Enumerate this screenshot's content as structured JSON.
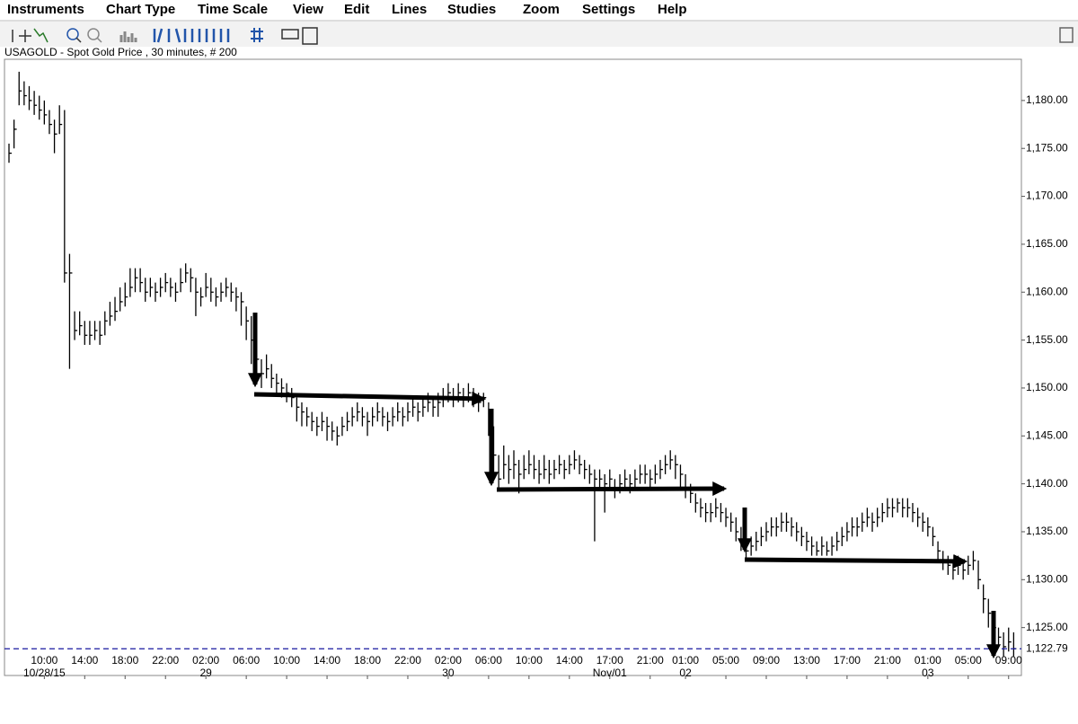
{
  "menu": [
    "Instruments",
    "Chart Type",
    "Time Scale",
    "View",
    "Edit",
    "Lines",
    "Studies",
    "Zoom",
    "Settings",
    "Help"
  ],
  "chart_data": {
    "type": "hlc",
    "title": "USAGOLD - Spot Gold Price , 30 minutes, # 200",
    "color": "#000000",
    "high": [
      1175.5,
      1178,
      1183,
      1182,
      1181.5,
      1181,
      1180.5,
      1180,
      1179,
      1178,
      1179.5,
      1179,
      1164,
      1158,
      1158,
      1157,
      1157,
      1157,
      1157,
      1158,
      1159,
      1159.5,
      1160.5,
      1161,
      1162.5,
      1162.5,
      1162.5,
      1161.5,
      1161.5,
      1161,
      1161.5,
      1162,
      1161.5,
      1161,
      1162.5,
      1163,
      1162.5,
      1161.5,
      1160.5,
      1162,
      1161.5,
      1160.5,
      1161,
      1161.5,
      1161,
      1160.5,
      1160,
      1158.5,
      1157.5,
      1155,
      1153,
      1153.5,
      1152.5,
      1151.5,
      1151,
      1150.5,
      1150,
      1149,
      1148.5,
      1148,
      1147.5,
      1147,
      1147.5,
      1147,
      1146.5,
      1146,
      1147,
      1147.5,
      1148,
      1148.5,
      1148,
      1147.5,
      1148,
      1148.5,
      1148,
      1147.5,
      1148,
      1148.5,
      1148,
      1148.5,
      1149,
      1148.5,
      1149,
      1149.5,
      1149,
      1149.5,
      1150,
      1150.5,
      1150,
      1150.5,
      1150,
      1150.5,
      1150,
      1149.5,
      1149.5,
      1148.5,
      1146,
      1143,
      1144,
      1143,
      1143.5,
      1142.5,
      1143,
      1143.5,
      1143,
      1142.5,
      1143,
      1142.5,
      1142.5,
      1143,
      1142.5,
      1143,
      1143.5,
      1143,
      1142.5,
      1142,
      1141.5,
      1141.5,
      1141,
      1141.5,
      1140.5,
      1141,
      1141.5,
      1141,
      1141.5,
      1142,
      1142,
      1141.5,
      1142,
      1142.5,
      1143,
      1143.5,
      1143,
      1142,
      1141,
      1140,
      1139,
      1138.5,
      1138,
      1138,
      1138.5,
      1138,
      1137.5,
      1137,
      1136.5,
      1135.5,
      1134.5,
      1134.5,
      1135,
      1135.5,
      1136,
      1136.5,
      1136.5,
      1137,
      1137,
      1136.5,
      1136,
      1135.5,
      1135,
      1134.5,
      1134,
      1134.5,
      1134,
      1134.5,
      1135,
      1135.5,
      1136,
      1136.5,
      1136.5,
      1137,
      1137.5,
      1137,
      1137.5,
      1138,
      1138.5,
      1138.5,
      1138.5,
      1138.5,
      1138.5,
      1138,
      1137.5,
      1137,
      1136.5,
      1135.5,
      1134,
      1133,
      1132.5,
      1132,
      1132.5,
      1132,
      1132.5,
      1133,
      1132,
      1129.5,
      1128,
      1126.5,
      1125,
      1124.5,
      1125,
      1124.5
    ],
    "low": [
      1173.5,
      1175,
      1179.5,
      1179.5,
      1179,
      1178.5,
      1178,
      1177.5,
      1176.5,
      1174.5,
      1176.5,
      1161,
      1152,
      1155,
      1155.5,
      1154.5,
      1154.5,
      1155,
      1154.5,
      1155.5,
      1156.5,
      1157,
      1158,
      1158.5,
      1159.5,
      1160,
      1160,
      1159,
      1159.5,
      1159,
      1159.5,
      1160,
      1159.5,
      1159,
      1160,
      1161,
      1160,
      1157.5,
      1158.5,
      1159.5,
      1159,
      1158.5,
      1159,
      1159.5,
      1159,
      1158,
      1156.5,
      1155,
      1152.5,
      1150.5,
      1150,
      1151,
      1150,
      1149.5,
      1149,
      1148.5,
      1148,
      1146.5,
      1146,
      1146,
      1145.5,
      1145,
      1145.5,
      1144.5,
      1144.5,
      1144,
      1145,
      1145.5,
      1146,
      1146.5,
      1146,
      1145,
      1146,
      1146.5,
      1146,
      1145.5,
      1146,
      1146.5,
      1146,
      1146.5,
      1147,
      1146.5,
      1147,
      1147.5,
      1147,
      1147,
      1148,
      1148.5,
      1148,
      1148.5,
      1148,
      1148.5,
      1148,
      1147.5,
      1148,
      1145,
      1141,
      1139.5,
      1140.5,
      1140,
      1140.5,
      1139,
      1140.5,
      1141,
      1140.5,
      1140,
      1140.5,
      1140,
      1140.5,
      1141,
      1140.5,
      1141,
      1141.5,
      1141,
      1140.5,
      1140,
      1134,
      1139.5,
      1137,
      1139.5,
      1138.5,
      1139,
      1139.5,
      1139,
      1139.5,
      1140,
      1140,
      1139.5,
      1140,
      1140.5,
      1141,
      1141.5,
      1140.5,
      1139.5,
      1138.5,
      1138,
      1137,
      1136.5,
      1136,
      1136,
      1136.5,
      1136,
      1135.5,
      1135,
      1134,
      1133,
      1132,
      1132.5,
      1133,
      1133.5,
      1134,
      1134.5,
      1134.5,
      1135,
      1135,
      1134.5,
      1134,
      1133.5,
      1133,
      1132.5,
      1132.5,
      1132.5,
      1132.5,
      1132.5,
      1133,
      1133.5,
      1134,
      1134.5,
      1134.5,
      1135,
      1135.5,
      1135,
      1135.5,
      1136,
      1136.5,
      1136.5,
      1137,
      1136.5,
      1136.5,
      1136,
      1135.5,
      1135,
      1134.5,
      1133.5,
      1132,
      1131,
      1130.5,
      1130,
      1130.5,
      1130,
      1130.5,
      1131,
      1129,
      1126.5,
      1125,
      1124,
      1123,
      1122,
      1122.5,
      1122
    ],
    "close": [
      1174.5,
      1177,
      1181,
      1180.5,
      1180,
      1179.5,
      1179,
      1178.5,
      1177.5,
      1176.5,
      1177.5,
      1162,
      1162,
      1156,
      1156.5,
      1155.5,
      1155.5,
      1156,
      1155.5,
      1157,
      1157.5,
      1158,
      1159,
      1159.5,
      1160.5,
      1161.5,
      1161,
      1160,
      1160.5,
      1160,
      1160.5,
      1161,
      1160.5,
      1160,
      1161,
      1162,
      1161.5,
      1160,
      1159.5,
      1160.5,
      1160,
      1159.5,
      1160,
      1160.5,
      1160,
      1159.5,
      1159,
      1157,
      1155,
      1153,
      1151.5,
      1152,
      1151,
      1150.5,
      1150,
      1149.5,
      1149,
      1148,
      1147.5,
      1147,
      1146.5,
      1146,
      1146.5,
      1146,
      1145.5,
      1145,
      1146,
      1146.5,
      1147,
      1147.5,
      1147,
      1146.5,
      1147,
      1147.5,
      1147,
      1146.5,
      1147,
      1147.5,
      1147,
      1147.5,
      1148,
      1147.5,
      1148,
      1148.5,
      1148,
      1148.5,
      1149,
      1149.5,
      1149,
      1149.5,
      1149,
      1149.5,
      1149,
      1148.5,
      1149,
      1146,
      1143,
      1140.5,
      1142,
      1141.5,
      1142,
      1141,
      1141.5,
      1142,
      1141.5,
      1141,
      1141.5,
      1141,
      1141.5,
      1142,
      1141.5,
      1142,
      1142.5,
      1142,
      1141.5,
      1141,
      1140.5,
      1140.5,
      1140,
      1140.5,
      1139.5,
      1140,
      1140.5,
      1140,
      1140.5,
      1141,
      1141,
      1140.5,
      1141,
      1141.5,
      1142,
      1142.5,
      1142,
      1141,
      1139.5,
      1139,
      1138,
      1137.5,
      1137,
      1137,
      1137.5,
      1137,
      1136.5,
      1136,
      1135,
      1134,
      1133,
      1133.5,
      1134,
      1134.5,
      1135,
      1135.5,
      1135.5,
      1136,
      1136,
      1135.5,
      1135,
      1134.5,
      1134,
      1133.5,
      1133,
      1133.5,
      1133,
      1133.5,
      1134,
      1134.5,
      1135,
      1135.5,
      1135.5,
      1136,
      1136.5,
      1136,
      1136.5,
      1137,
      1137.5,
      1137.5,
      1138,
      1137.5,
      1137.5,
      1137,
      1136.5,
      1136,
      1135.5,
      1134.5,
      1133,
      1132,
      1131.5,
      1131,
      1131.5,
      1131,
      1131.5,
      1132,
      1130,
      1128,
      1126.5,
      1125,
      1124,
      1123,
      1123.5,
      1122.8
    ],
    "xlim": [
      0,
      200
    ],
    "xticks": [
      {
        "value": 7,
        "label": "10:00"
      },
      {
        "value": 15,
        "label": "14:00"
      },
      {
        "value": 23,
        "label": "18:00"
      },
      {
        "value": 31,
        "label": "22:00"
      },
      {
        "value": 39,
        "label": "02:00"
      },
      {
        "value": 47,
        "label": "06:00"
      },
      {
        "value": 55,
        "label": "10:00"
      },
      {
        "value": 63,
        "label": "14:00"
      },
      {
        "value": 71,
        "label": "18:00"
      },
      {
        "value": 79,
        "label": "22:00"
      },
      {
        "value": 87,
        "label": "02:00"
      },
      {
        "value": 95,
        "label": "06:00"
      },
      {
        "value": 103,
        "label": "10:00"
      },
      {
        "value": 111,
        "label": "14:00"
      },
      {
        "value": 119,
        "label": "17:00"
      },
      {
        "value": 127,
        "label": "21:00"
      },
      {
        "value": 134,
        "label": "01:00"
      },
      {
        "value": 142,
        "label": "05:00"
      },
      {
        "value": 150,
        "label": "09:00"
      },
      {
        "value": 158,
        "label": "13:00"
      },
      {
        "value": 166,
        "label": "17:00"
      },
      {
        "value": 174,
        "label": "21:00"
      },
      {
        "value": 182,
        "label": "01:00"
      },
      {
        "value": 190,
        "label": "05:00"
      },
      {
        "value": 198,
        "label": "09:00"
      }
    ],
    "x_date_labels": [
      {
        "value": 7,
        "label": "10/28/15"
      },
      {
        "value": 39,
        "label": "29"
      },
      {
        "value": 87,
        "label": "30"
      },
      {
        "value": 119,
        "label": "Nov/01"
      },
      {
        "value": 134,
        "label": "02"
      },
      {
        "value": 182,
        "label": "03"
      }
    ],
    "ylim": [
      1120,
      1184.3
    ],
    "yticks": [
      {
        "value": 1125,
        "label": "1,125.00"
      },
      {
        "value": 1130,
        "label": "1,130.00"
      },
      {
        "value": 1135,
        "label": "1,135.00"
      },
      {
        "value": 1140,
        "label": "1,140.00"
      },
      {
        "value": 1145,
        "label": "1,145.00"
      },
      {
        "value": 1150,
        "label": "1,150.00"
      },
      {
        "value": 1155,
        "label": "1,155.00"
      },
      {
        "value": 1160,
        "label": "1,160.00"
      },
      {
        "value": 1165,
        "label": "1,165.00"
      },
      {
        "value": 1170,
        "label": "1,170.00"
      },
      {
        "value": 1175,
        "label": "1,175.00"
      },
      {
        "value": 1180,
        "label": "1,180.00"
      }
    ],
    "last_price": {
      "value": 1122.79,
      "label": "1,122.79",
      "color": "#1a1aa0"
    }
  }
}
